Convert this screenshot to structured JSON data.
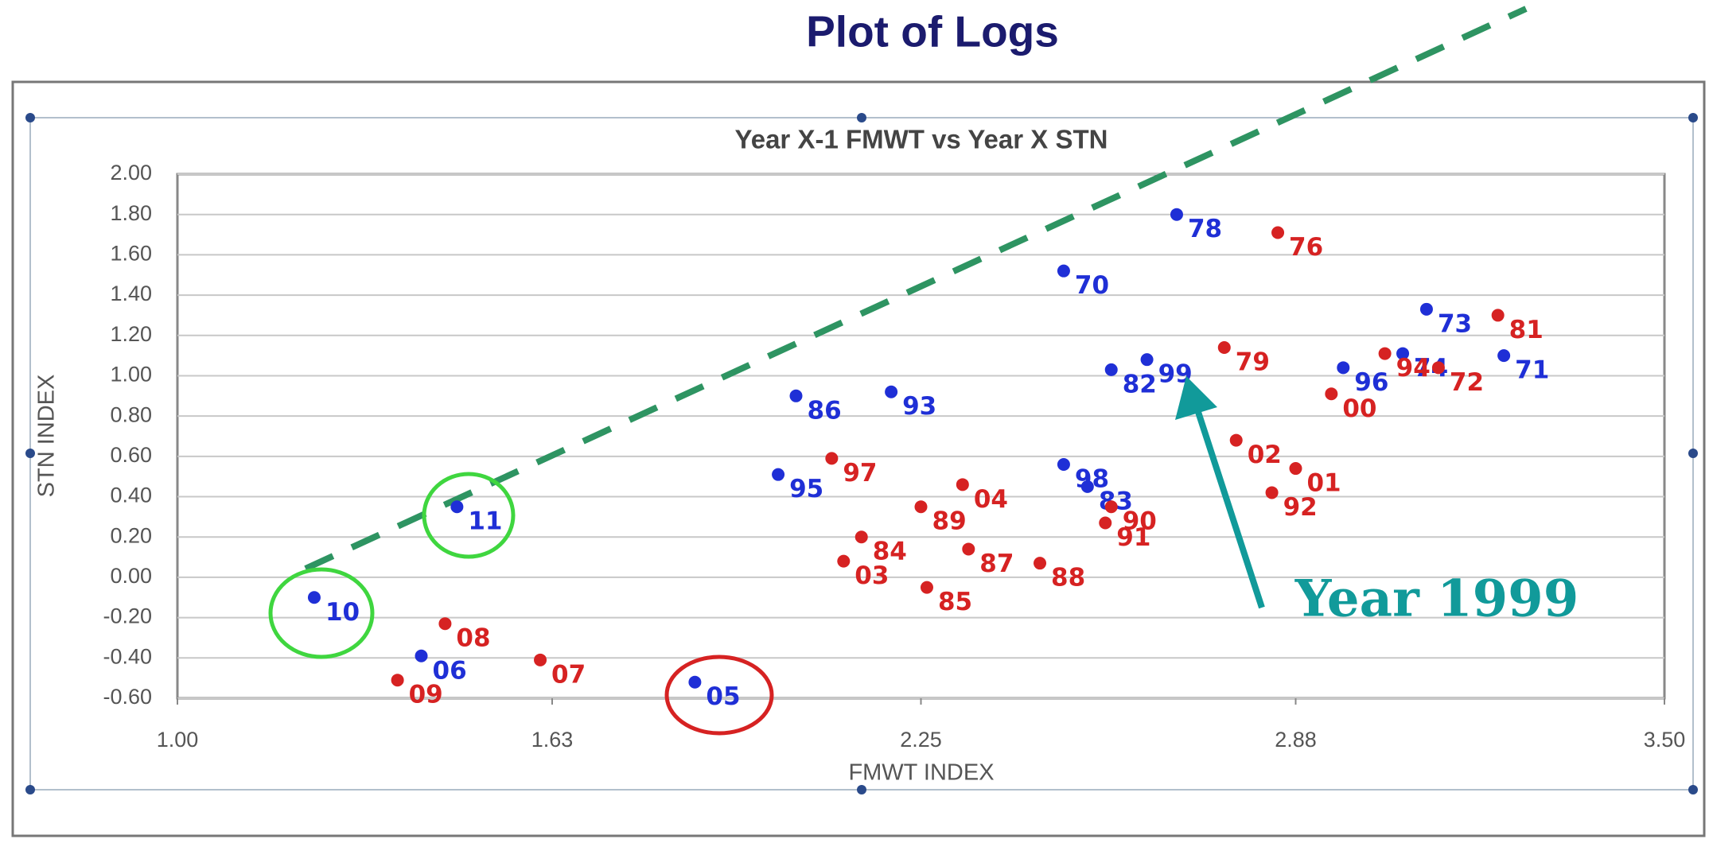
{
  "chart_data": {
    "type": "scatter",
    "title": "Plot of Logs",
    "subtitle": "Year X-1 FMWT vs Year X STN",
    "x_label": "FMWT INDEX",
    "y_label": "STN INDEX",
    "annotation": "Year 1999",
    "xlim": [
      1.0,
      3.5
    ],
    "ylim": [
      -0.6,
      2.0
    ],
    "xticks": [
      {
        "value": 1.0,
        "label": "1.00"
      },
      1.63,
      2.25,
      2.88,
      {
        "value": 3.5,
        "label": "3.50"
      }
    ],
    "yticks": [
      {
        "value": 2.0,
        "label": "2.00"
      },
      {
        "value": 1.8,
        "label": "1.80"
      },
      {
        "value": 1.6,
        "label": "1.60"
      },
      {
        "value": 1.4,
        "label": "1.40"
      },
      {
        "value": 1.2,
        "label": "1.20"
      },
      {
        "value": 1.0,
        "label": "1.00"
      },
      {
        "value": 0.8,
        "label": "0.80"
      },
      {
        "value": 0.6,
        "label": "0.60"
      },
      {
        "value": 0.4,
        "label": "0.40"
      },
      {
        "value": 0.2,
        "label": "0.20"
      },
      {
        "value": 0.0,
        "label": "0.00"
      },
      {
        "value": -0.2,
        "label": "-0.20"
      },
      {
        "value": -0.4,
        "label": "-0.40"
      },
      {
        "value": -0.6,
        "label": "-0.60"
      }
    ],
    "grid": true,
    "labels": [
      "78",
      "76",
      "70",
      "73",
      "81",
      "74",
      "96",
      "94",
      "72",
      "71",
      "79",
      "82",
      "99",
      "00",
      "86",
      "93",
      "98",
      "83",
      "02",
      "01",
      "92",
      "97",
      "95",
      "04",
      "90",
      "91",
      "89",
      "84",
      "87",
      "03",
      "88",
      "85",
      "11",
      "10",
      "08",
      "06",
      "07",
      "09",
      "05"
    ],
    "x": [
      2.68,
      2.85,
      2.49,
      3.1,
      3.22,
      3.06,
      2.96,
      3.03,
      3.12,
      3.23,
      2.76,
      2.57,
      2.63,
      2.94,
      2.04,
      2.2,
      2.49,
      2.53,
      2.78,
      2.88,
      2.84,
      2.1,
      2.01,
      2.32,
      2.57,
      2.56,
      2.25,
      2.15,
      2.33,
      2.12,
      2.45,
      2.26,
      1.47,
      1.23,
      1.45,
      1.41,
      1.61,
      1.37,
      1.87
    ],
    "values": [
      1.8,
      1.71,
      1.52,
      1.33,
      1.3,
      1.11,
      1.04,
      1.11,
      1.04,
      1.1,
      1.14,
      1.03,
      1.08,
      0.91,
      0.9,
      0.92,
      0.56,
      0.45,
      0.68,
      0.54,
      0.42,
      0.59,
      0.51,
      0.46,
      0.35,
      0.27,
      0.35,
      0.2,
      0.14,
      0.08,
      0.07,
      -0.05,
      0.35,
      -0.1,
      -0.23,
      -0.39,
      -0.41,
      -0.51,
      -0.52
    ],
    "colors": [
      "#1f2fd6",
      "#d62222",
      "#1f2fd6",
      "#1f2fd6",
      "#d62222",
      "#1f2fd6",
      "#1f2fd6",
      "#d62222",
      "#d62222",
      "#1f2fd6",
      "#d62222",
      "#1f2fd6",
      "#1f2fd6",
      "#d62222",
      "#1f2fd6",
      "#1f2fd6",
      "#1f2fd6",
      "#1f2fd6",
      "#d62222",
      "#d62222",
      "#d62222",
      "#d62222",
      "#1f2fd6",
      "#d62222",
      "#d62222",
      "#d62222",
      "#d62222",
      "#d62222",
      "#d62222",
      "#d62222",
      "#d62222",
      "#d62222",
      "#1f2fd6",
      "#1f2fd6",
      "#d62222",
      "#1f2fd6",
      "#d62222",
      "#d62222",
      "#1f2fd6"
    ]
  }
}
